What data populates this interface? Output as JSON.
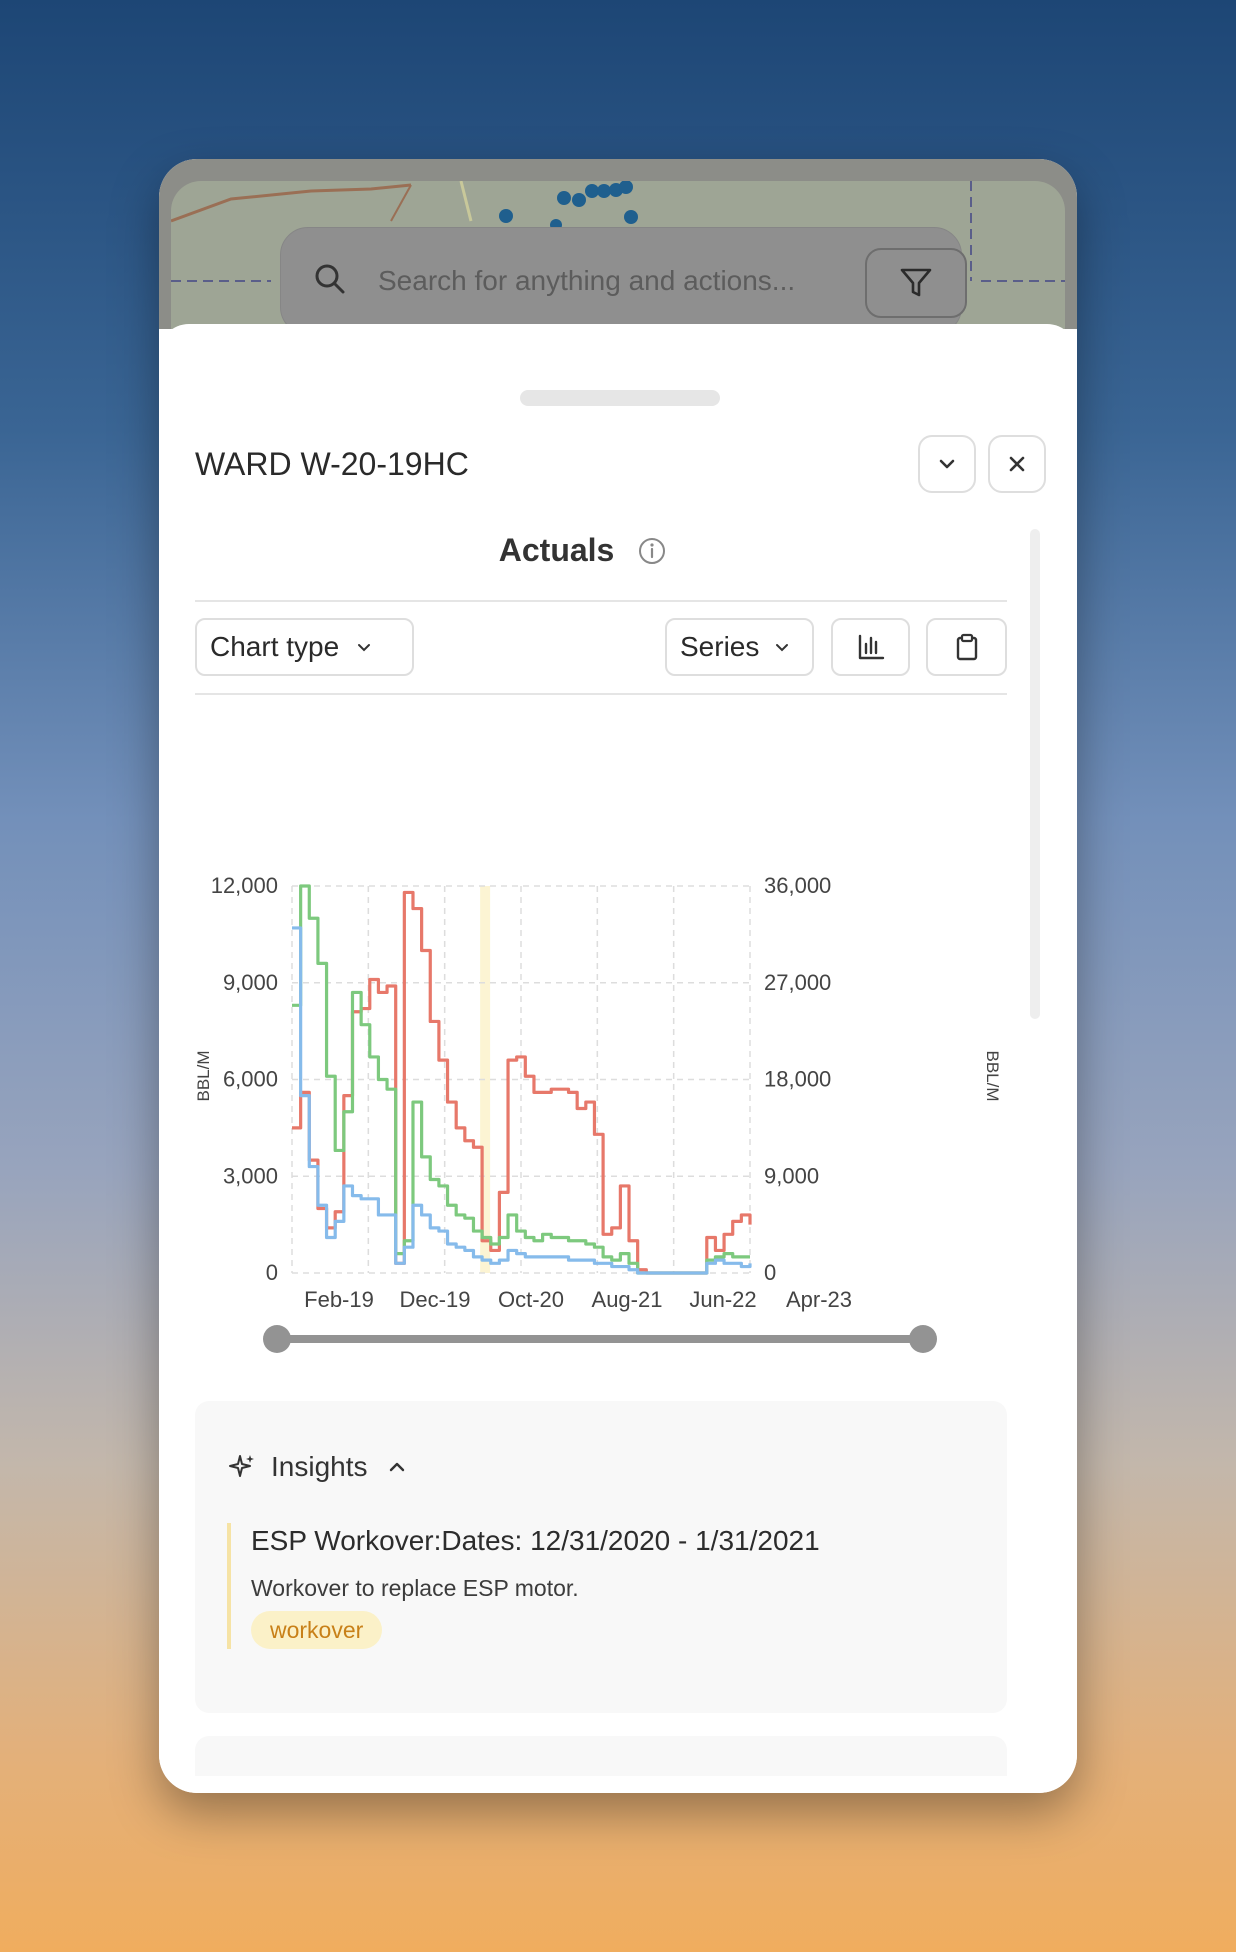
{
  "search": {
    "placeholder": "Search for anything and actions..."
  },
  "panel": {
    "title": "WARD W-20-19HC",
    "section_title": "Actuals"
  },
  "toolbar": {
    "chart_type_label": "Chart type",
    "series_label": "Series"
  },
  "chart_data": {
    "type": "line",
    "x_tick_labels": [
      "Feb-19",
      "Dec-19",
      "Oct-20",
      "Aug-21",
      "Jun-22",
      "Apr-23"
    ],
    "left_y_ticks": [
      "0",
      "3,000",
      "6,000",
      "9,000",
      "12,000"
    ],
    "right_y_ticks": [
      "0",
      "9,000",
      "18,000",
      "27,000",
      "36,000"
    ],
    "ylabel_left": "BBL/M",
    "ylabel_right": "BBL/M",
    "ylim_left": [
      0,
      12000
    ],
    "ylim_right": [
      0,
      36000
    ],
    "grid": true,
    "highlight_band": {
      "start": "Dec-20",
      "end": "Jan-21",
      "color": "#fbf1c8"
    },
    "series": [
      {
        "color": "#e7786a",
        "values": [
          4500,
          5600,
          3500,
          2000,
          1400,
          1900,
          5500,
          8100,
          8200,
          9100,
          8700,
          8900,
          300,
          11800,
          11300,
          10000,
          7800,
          6600,
          5300,
          4500,
          4100,
          3900,
          1000,
          700,
          2500,
          6600,
          6700,
          6100,
          5600,
          5600,
          5700,
          5700,
          5600,
          5100,
          5300,
          4300,
          1200,
          1400,
          2700,
          1000,
          100,
          0,
          0,
          0,
          0,
          0,
          0,
          0,
          1100,
          700,
          1200,
          1600,
          1800,
          1500
        ]
      },
      {
        "color": "#7dc97e",
        "values": [
          8300,
          12000,
          11000,
          9600,
          6100,
          3800,
          5000,
          8700,
          7700,
          6700,
          6000,
          5700,
          600,
          1000,
          5300,
          3600,
          2900,
          2700,
          2100,
          1800,
          1700,
          1300,
          1100,
          900,
          1100,
          1800,
          1300,
          1100,
          1000,
          1200,
          1100,
          1100,
          1000,
          1000,
          900,
          800,
          500,
          400,
          600,
          300,
          0,
          0,
          0,
          0,
          0,
          0,
          0,
          0,
          400,
          500,
          600,
          500,
          500,
          500
        ]
      },
      {
        "color": "#86bbeb",
        "values": [
          10700,
          5500,
          3300,
          2100,
          1100,
          1600,
          2700,
          2400,
          2300,
          2300,
          1800,
          1800,
          300,
          800,
          2100,
          1800,
          1400,
          1300,
          900,
          800,
          700,
          500,
          400,
          300,
          400,
          700,
          600,
          500,
          500,
          500,
          500,
          500,
          400,
          400,
          400,
          300,
          300,
          200,
          200,
          100,
          0,
          0,
          0,
          0,
          0,
          0,
          0,
          0,
          300,
          400,
          300,
          300,
          200,
          300
        ]
      }
    ]
  },
  "insights": {
    "header": "Insights",
    "items": [
      {
        "title": "ESP Workover:Dates: 12/31/2020 - 1/31/2021",
        "description": "Workover to replace ESP motor.",
        "tag": "workover"
      }
    ]
  }
}
